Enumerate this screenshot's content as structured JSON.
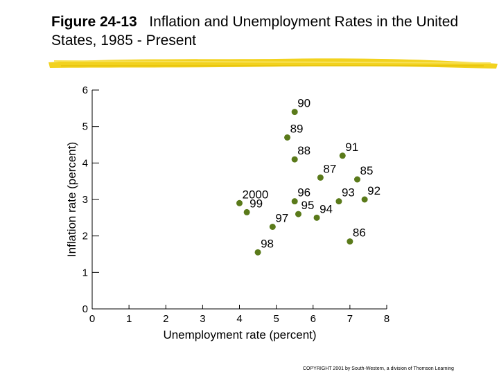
{
  "title": {
    "figure_label": "Figure 24-13",
    "text": "Inflation and Unemployment Rates in the United States, 1985 - Present"
  },
  "copyright": "COPYRIGHT 2001 by South-Western, a division of Thomson Learning",
  "colors": {
    "point": "#5a7a1a",
    "brush": "#f2d21e",
    "axis": "#000000"
  },
  "chart_data": {
    "type": "scatter",
    "title": "Inflation and Unemployment Rates in the United States, 1985 - Present",
    "xlabel": "Unemployment rate (percent)",
    "ylabel": "Inflation rate (percent)",
    "xlim": [
      0,
      8
    ],
    "ylim": [
      0,
      6
    ],
    "xticks": [
      "0",
      "1",
      "2",
      "3",
      "4",
      "5",
      "6",
      "7",
      "8"
    ],
    "yticks": [
      "0",
      "1",
      "2",
      "3",
      "4",
      "5",
      "6"
    ],
    "grid": false,
    "points": [
      {
        "label": "90",
        "x": 5.5,
        "y": 5.4
      },
      {
        "label": "89",
        "x": 5.3,
        "y": 4.7
      },
      {
        "label": "88",
        "x": 5.5,
        "y": 4.1
      },
      {
        "label": "91",
        "x": 6.8,
        "y": 4.2
      },
      {
        "label": "87",
        "x": 6.2,
        "y": 3.6
      },
      {
        "label": "85",
        "x": 7.2,
        "y": 3.55
      },
      {
        "label": "2000",
        "x": 4.0,
        "y": 2.9
      },
      {
        "label": "99",
        "x": 4.2,
        "y": 2.65
      },
      {
        "label": "96",
        "x": 5.5,
        "y": 2.95
      },
      {
        "label": "95",
        "x": 5.6,
        "y": 2.6
      },
      {
        "label": "93",
        "x": 6.7,
        "y": 2.95
      },
      {
        "label": "92",
        "x": 7.4,
        "y": 3.0
      },
      {
        "label": "94",
        "x": 6.1,
        "y": 2.5
      },
      {
        "label": "97",
        "x": 4.9,
        "y": 2.25
      },
      {
        "label": "86",
        "x": 7.0,
        "y": 1.85
      },
      {
        "label": "98",
        "x": 4.5,
        "y": 1.55
      }
    ]
  }
}
